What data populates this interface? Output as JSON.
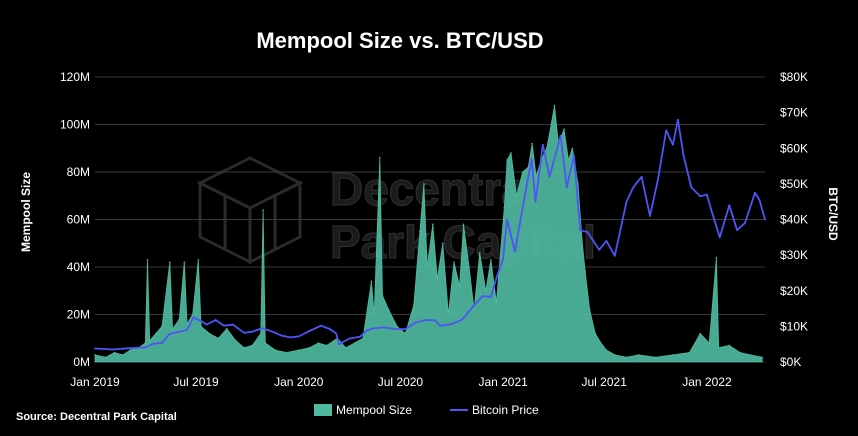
{
  "colors": {
    "background": "#000000",
    "mempool": "#4fb99f",
    "price": "#4d55f5",
    "grid": "#3a3a3a",
    "text": "#ffffff"
  },
  "watermark": {
    "icon": "cube-logo-icon",
    "line1": "Decentral",
    "line2": "Park Capital"
  },
  "chart_data": {
    "type": "area",
    "title": "Mempool Size vs. BTC/USD",
    "ylabel": "Mempool Size",
    "ylabel_right": "BTC/USD",
    "source": "Source: Decentral Park Capital",
    "grid": true,
    "legend_position": "bottom",
    "x_range": [
      "2019-01-01",
      "2022-04-15"
    ],
    "x_ticks": [
      {
        "date": "2019-01-01",
        "label": "Jan 2019"
      },
      {
        "date": "2019-07-01",
        "label": "Jul 2019"
      },
      {
        "date": "2020-01-01",
        "label": "Jan 2020"
      },
      {
        "date": "2020-07-01",
        "label": "Jul 2020"
      },
      {
        "date": "2021-01-01",
        "label": "Jan 2021"
      },
      {
        "date": "2021-07-01",
        "label": "Jul 2021"
      },
      {
        "date": "2022-01-01",
        "label": "Jan 2022"
      }
    ],
    "y_left": {
      "range": [
        0,
        120
      ],
      "unit": "M",
      "ticks": [
        {
          "value": 0,
          "label": "0M"
        },
        {
          "value": 20,
          "label": "20M"
        },
        {
          "value": 40,
          "label": "40M"
        },
        {
          "value": 60,
          "label": "60M"
        },
        {
          "value": 80,
          "label": "80M"
        },
        {
          "value": 100,
          "label": "100M"
        },
        {
          "value": 120,
          "label": "120M"
        }
      ]
    },
    "y_right": {
      "range": [
        0,
        80000
      ],
      "unit": "USD",
      "ticks": [
        {
          "value": 0,
          "label": "$0K"
        },
        {
          "value": 10000,
          "label": "$10K"
        },
        {
          "value": 20000,
          "label": "$20K"
        },
        {
          "value": 30000,
          "label": "$30K"
        },
        {
          "value": 40000,
          "label": "$40K"
        },
        {
          "value": 50000,
          "label": "$50K"
        },
        {
          "value": 60000,
          "label": "$60K"
        },
        {
          "value": 70000,
          "label": "$70K"
        },
        {
          "value": 80000,
          "label": "$80K"
        }
      ]
    },
    "series": [
      {
        "name": "Mempool Size",
        "type": "area",
        "axis": "left",
        "points": [
          [
            "2019-01-01",
            3
          ],
          [
            "2019-01-20",
            2
          ],
          [
            "2019-02-05",
            4
          ],
          [
            "2019-02-20",
            3
          ],
          [
            "2019-03-05",
            5
          ],
          [
            "2019-03-20",
            6
          ],
          [
            "2019-04-01",
            8
          ],
          [
            "2019-04-05",
            43
          ],
          [
            "2019-04-09",
            9
          ],
          [
            "2019-04-20",
            12
          ],
          [
            "2019-05-01",
            15
          ],
          [
            "2019-05-15",
            42
          ],
          [
            "2019-05-20",
            14
          ],
          [
            "2019-06-01",
            18
          ],
          [
            "2019-06-10",
            42
          ],
          [
            "2019-06-15",
            16
          ],
          [
            "2019-06-25",
            20
          ],
          [
            "2019-07-05",
            43
          ],
          [
            "2019-07-10",
            15
          ],
          [
            "2019-07-25",
            12
          ],
          [
            "2019-08-10",
            10
          ],
          [
            "2019-08-25",
            14
          ],
          [
            "2019-09-10",
            9
          ],
          [
            "2019-09-25",
            6
          ],
          [
            "2019-10-10",
            7
          ],
          [
            "2019-10-25",
            12
          ],
          [
            "2019-10-29",
            64
          ],
          [
            "2019-11-02",
            8
          ],
          [
            "2019-11-20",
            5
          ],
          [
            "2019-12-10",
            4
          ],
          [
            "2020-01-01",
            5
          ],
          [
            "2020-01-20",
            6
          ],
          [
            "2020-02-05",
            8
          ],
          [
            "2020-02-20",
            7
          ],
          [
            "2020-03-10",
            10
          ],
          [
            "2020-03-25",
            6
          ],
          [
            "2020-04-10",
            8
          ],
          [
            "2020-04-25",
            10
          ],
          [
            "2020-05-10",
            34
          ],
          [
            "2020-05-15",
            20
          ],
          [
            "2020-05-25",
            86
          ],
          [
            "2020-05-30",
            28
          ],
          [
            "2020-06-10",
            22
          ],
          [
            "2020-06-25",
            15
          ],
          [
            "2020-07-10",
            12
          ],
          [
            "2020-07-25",
            24
          ],
          [
            "2020-08-05",
            55
          ],
          [
            "2020-08-12",
            75
          ],
          [
            "2020-08-18",
            40
          ],
          [
            "2020-08-28",
            58
          ],
          [
            "2020-09-05",
            35
          ],
          [
            "2020-09-15",
            50
          ],
          [
            "2020-09-25",
            20
          ],
          [
            "2020-10-05",
            42
          ],
          [
            "2020-10-15",
            32
          ],
          [
            "2020-10-22",
            58
          ],
          [
            "2020-11-01",
            40
          ],
          [
            "2020-11-10",
            22
          ],
          [
            "2020-11-20",
            46
          ],
          [
            "2020-12-01",
            30
          ],
          [
            "2020-12-10",
            43
          ],
          [
            "2020-12-20",
            25
          ],
          [
            "2020-12-28",
            48
          ],
          [
            "2021-01-03",
            65
          ],
          [
            "2021-01-08",
            85
          ],
          [
            "2021-01-15",
            88
          ],
          [
            "2021-01-25",
            70
          ],
          [
            "2021-02-05",
            80
          ],
          [
            "2021-02-15",
            82
          ],
          [
            "2021-02-22",
            92
          ],
          [
            "2021-03-01",
            78
          ],
          [
            "2021-03-10",
            85
          ],
          [
            "2021-03-20",
            90
          ],
          [
            "2021-03-28",
            100
          ],
          [
            "2021-04-03",
            108
          ],
          [
            "2021-04-10",
            92
          ],
          [
            "2021-04-20",
            98
          ],
          [
            "2021-04-28",
            85
          ],
          [
            "2021-05-05",
            90
          ],
          [
            "2021-05-15",
            75
          ],
          [
            "2021-05-22",
            52
          ],
          [
            "2021-05-28",
            38
          ],
          [
            "2021-06-05",
            22
          ],
          [
            "2021-06-15",
            12
          ],
          [
            "2021-06-25",
            8
          ],
          [
            "2021-07-05",
            5
          ],
          [
            "2021-07-20",
            3
          ],
          [
            "2021-08-10",
            2
          ],
          [
            "2021-09-01",
            3
          ],
          [
            "2021-10-01",
            2
          ],
          [
            "2021-11-01",
            3
          ],
          [
            "2021-12-01",
            4
          ],
          [
            "2021-12-20",
            12
          ],
          [
            "2022-01-05",
            8
          ],
          [
            "2022-01-18",
            44
          ],
          [
            "2022-01-22",
            6
          ],
          [
            "2022-02-10",
            7
          ],
          [
            "2022-03-01",
            4
          ],
          [
            "2022-03-20",
            3
          ],
          [
            "2022-04-10",
            2
          ]
        ]
      },
      {
        "name": "Bitcoin Price",
        "type": "line",
        "axis": "right",
        "points": [
          [
            "2019-01-01",
            3800
          ],
          [
            "2019-02-01",
            3500
          ],
          [
            "2019-03-01",
            3850
          ],
          [
            "2019-04-01",
            4100
          ],
          [
            "2019-04-15",
            5100
          ],
          [
            "2019-05-01",
            5400
          ],
          [
            "2019-05-15",
            7900
          ],
          [
            "2019-06-01",
            8500
          ],
          [
            "2019-06-15",
            9000
          ],
          [
            "2019-06-26",
            12500
          ],
          [
            "2019-07-10",
            11500
          ],
          [
            "2019-07-20",
            10500
          ],
          [
            "2019-08-05",
            11800
          ],
          [
            "2019-08-20",
            10200
          ],
          [
            "2019-09-05",
            10500
          ],
          [
            "2019-09-25",
            8200
          ],
          [
            "2019-10-10",
            8500
          ],
          [
            "2019-10-27",
            9500
          ],
          [
            "2019-11-15",
            8500
          ],
          [
            "2019-12-01",
            7400
          ],
          [
            "2019-12-17",
            6900
          ],
          [
            "2020-01-01",
            7200
          ],
          [
            "2020-01-20",
            8700
          ],
          [
            "2020-02-10",
            10200
          ],
          [
            "2020-02-25",
            9300
          ],
          [
            "2020-03-08",
            8000
          ],
          [
            "2020-03-13",
            5000
          ],
          [
            "2020-04-01",
            6600
          ],
          [
            "2020-04-20",
            7100
          ],
          [
            "2020-05-01",
            8800
          ],
          [
            "2020-05-15",
            9500
          ],
          [
            "2020-06-01",
            9700
          ],
          [
            "2020-06-20",
            9300
          ],
          [
            "2020-07-10",
            9200
          ],
          [
            "2020-07-27",
            11000
          ],
          [
            "2020-08-15",
            11800
          ],
          [
            "2020-09-01",
            11700
          ],
          [
            "2020-09-10",
            10200
          ],
          [
            "2020-10-01",
            10600
          ],
          [
            "2020-10-20",
            12000
          ],
          [
            "2020-11-05",
            15000
          ],
          [
            "2020-11-25",
            18500
          ],
          [
            "2020-12-10",
            18300
          ],
          [
            "2020-12-20",
            23500
          ],
          [
            "2021-01-01",
            29000
          ],
          [
            "2021-01-08",
            40000
          ],
          [
            "2021-01-22",
            31000
          ],
          [
            "2021-02-08",
            46000
          ],
          [
            "2021-02-21",
            57000
          ],
          [
            "2021-02-28",
            45000
          ],
          [
            "2021-03-13",
            61000
          ],
          [
            "2021-03-25",
            52000
          ],
          [
            "2021-04-14",
            63500
          ],
          [
            "2021-04-25",
            49000
          ],
          [
            "2021-05-08",
            58000
          ],
          [
            "2021-05-19",
            37000
          ],
          [
            "2021-06-01",
            36500
          ],
          [
            "2021-06-22",
            31500
          ],
          [
            "2021-07-05",
            34000
          ],
          [
            "2021-07-20",
            29800
          ],
          [
            "2021-08-10",
            45000
          ],
          [
            "2021-08-22",
            49000
          ],
          [
            "2021-09-06",
            52000
          ],
          [
            "2021-09-21",
            41000
          ],
          [
            "2021-10-05",
            51000
          ],
          [
            "2021-10-20",
            65000
          ],
          [
            "2021-11-01",
            61000
          ],
          [
            "2021-11-10",
            68000
          ],
          [
            "2021-11-20",
            58000
          ],
          [
            "2021-12-04",
            49000
          ],
          [
            "2021-12-20",
            46500
          ],
          [
            "2022-01-01",
            47000
          ],
          [
            "2022-01-10",
            42000
          ],
          [
            "2022-01-24",
            35000
          ],
          [
            "2022-02-10",
            44000
          ],
          [
            "2022-02-24",
            37000
          ],
          [
            "2022-03-10",
            39000
          ],
          [
            "2022-03-28",
            47500
          ],
          [
            "2022-04-05",
            45500
          ],
          [
            "2022-04-15",
            40000
          ]
        ]
      }
    ]
  }
}
